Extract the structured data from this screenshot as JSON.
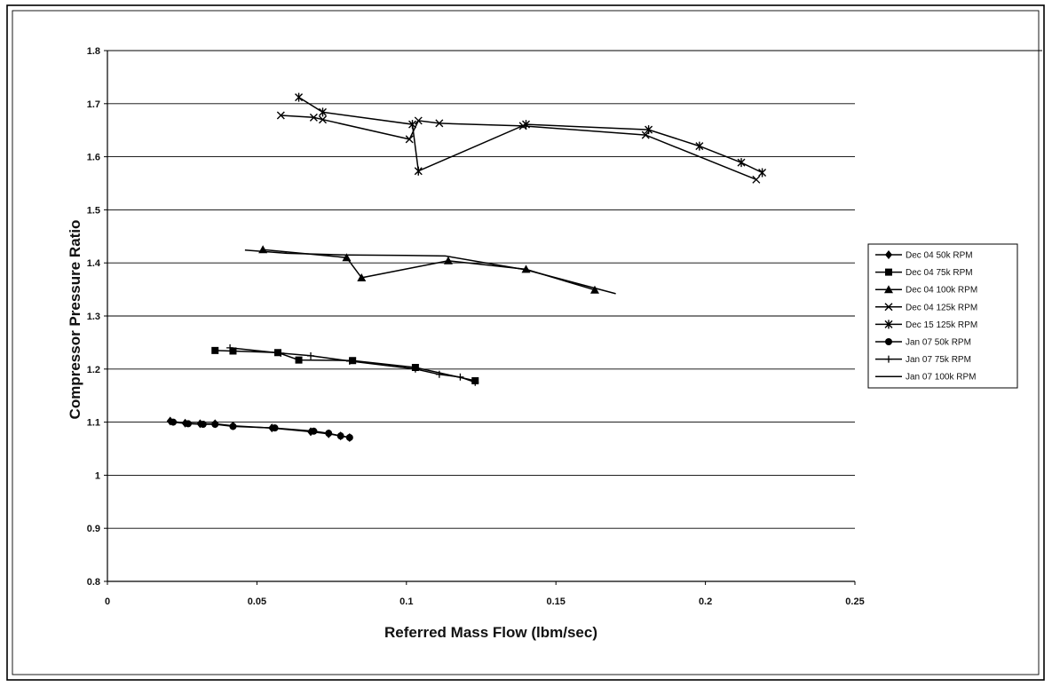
{
  "chart_data": {
    "type": "line",
    "title": "",
    "xlabel": "Referred Mass Flow (lbm/sec)",
    "ylabel": "Compressor Pressure Ratio",
    "xlim": [
      0,
      0.25
    ],
    "ylim": [
      0.8,
      1.8
    ],
    "x_ticks": [
      "0",
      "0.05",
      "0.1",
      "0.15",
      "0.2",
      "0.25"
    ],
    "y_ticks": [
      "0.8",
      "0.9",
      "1",
      "1.1",
      "1.2",
      "1.3",
      "1.4",
      "1.5",
      "1.6",
      "1.7",
      "1.8"
    ],
    "grid": "horizontal",
    "legend_position": "right",
    "series": [
      {
        "name": "Dec 04 50k RPM",
        "marker": "diamond",
        "color": "#000000",
        "x": [
          0.021,
          0.026,
          0.031,
          0.036,
          0.042,
          0.055,
          0.068,
          0.074,
          0.078,
          0.081
        ],
        "y": [
          1.102,
          1.098,
          1.097,
          1.097,
          1.093,
          1.089,
          1.082,
          1.078,
          1.074,
          1.071
        ]
      },
      {
        "name": "Dec 04 75k RPM",
        "marker": "square",
        "color": "#000000",
        "x": [
          0.036,
          0.042,
          0.057,
          0.064,
          0.082,
          0.103,
          0.123
        ],
        "y": [
          1.235,
          1.234,
          1.231,
          1.217,
          1.216,
          1.203,
          1.178
        ]
      },
      {
        "name": "Dec 04 100k RPM",
        "marker": "triangle",
        "color": "#000000",
        "x": [
          0.052,
          0.08,
          0.085,
          0.114,
          0.14,
          0.163
        ],
        "y": [
          1.425,
          1.41,
          1.372,
          1.404,
          1.388,
          1.349
        ]
      },
      {
        "name": "Dec 04 125k RPM",
        "marker": "x",
        "color": "#000000",
        "x": [
          0.058,
          0.069,
          0.072,
          0.101,
          0.104,
          0.111,
          0.139,
          0.18,
          0.217
        ],
        "y": [
          1.678,
          1.674,
          1.67,
          1.633,
          1.668,
          1.663,
          1.658,
          1.641,
          1.557
        ]
      },
      {
        "name": "Dec 15 125k RPM",
        "marker": "star",
        "color": "#000000",
        "x": [
          0.064,
          0.072,
          0.102,
          0.104,
          0.14,
          0.181,
          0.198,
          0.212,
          0.219
        ],
        "y": [
          1.712,
          1.684,
          1.661,
          1.573,
          1.661,
          1.651,
          1.62,
          1.589,
          1.57
        ]
      },
      {
        "name": "Jan 07 50k RPM",
        "marker": "circle",
        "color": "#000000",
        "x": [
          0.022,
          0.027,
          0.032,
          0.036,
          0.042,
          0.056,
          0.069,
          0.074,
          0.078,
          0.081
        ],
        "y": [
          1.1,
          1.097,
          1.096,
          1.096,
          1.092,
          1.089,
          1.083,
          1.079,
          1.074,
          1.071
        ]
      },
      {
        "name": "Jan 07 75k RPM",
        "marker": "plus",
        "color": "#000000",
        "x": [
          0.041,
          0.058,
          0.068,
          0.081,
          0.103,
          0.111,
          0.118,
          0.123
        ],
        "y": [
          1.24,
          1.23,
          1.225,
          1.215,
          1.2,
          1.19,
          1.185,
          1.175
        ]
      },
      {
        "name": "Jan 07 100k RPM",
        "marker": "none",
        "color": "#000000",
        "x": [
          0.046,
          0.06,
          0.08,
          0.1,
          0.113,
          0.14,
          0.158,
          0.17
        ],
        "y": [
          1.424,
          1.418,
          1.415,
          1.414,
          1.413,
          1.387,
          1.36,
          1.342
        ]
      }
    ]
  }
}
